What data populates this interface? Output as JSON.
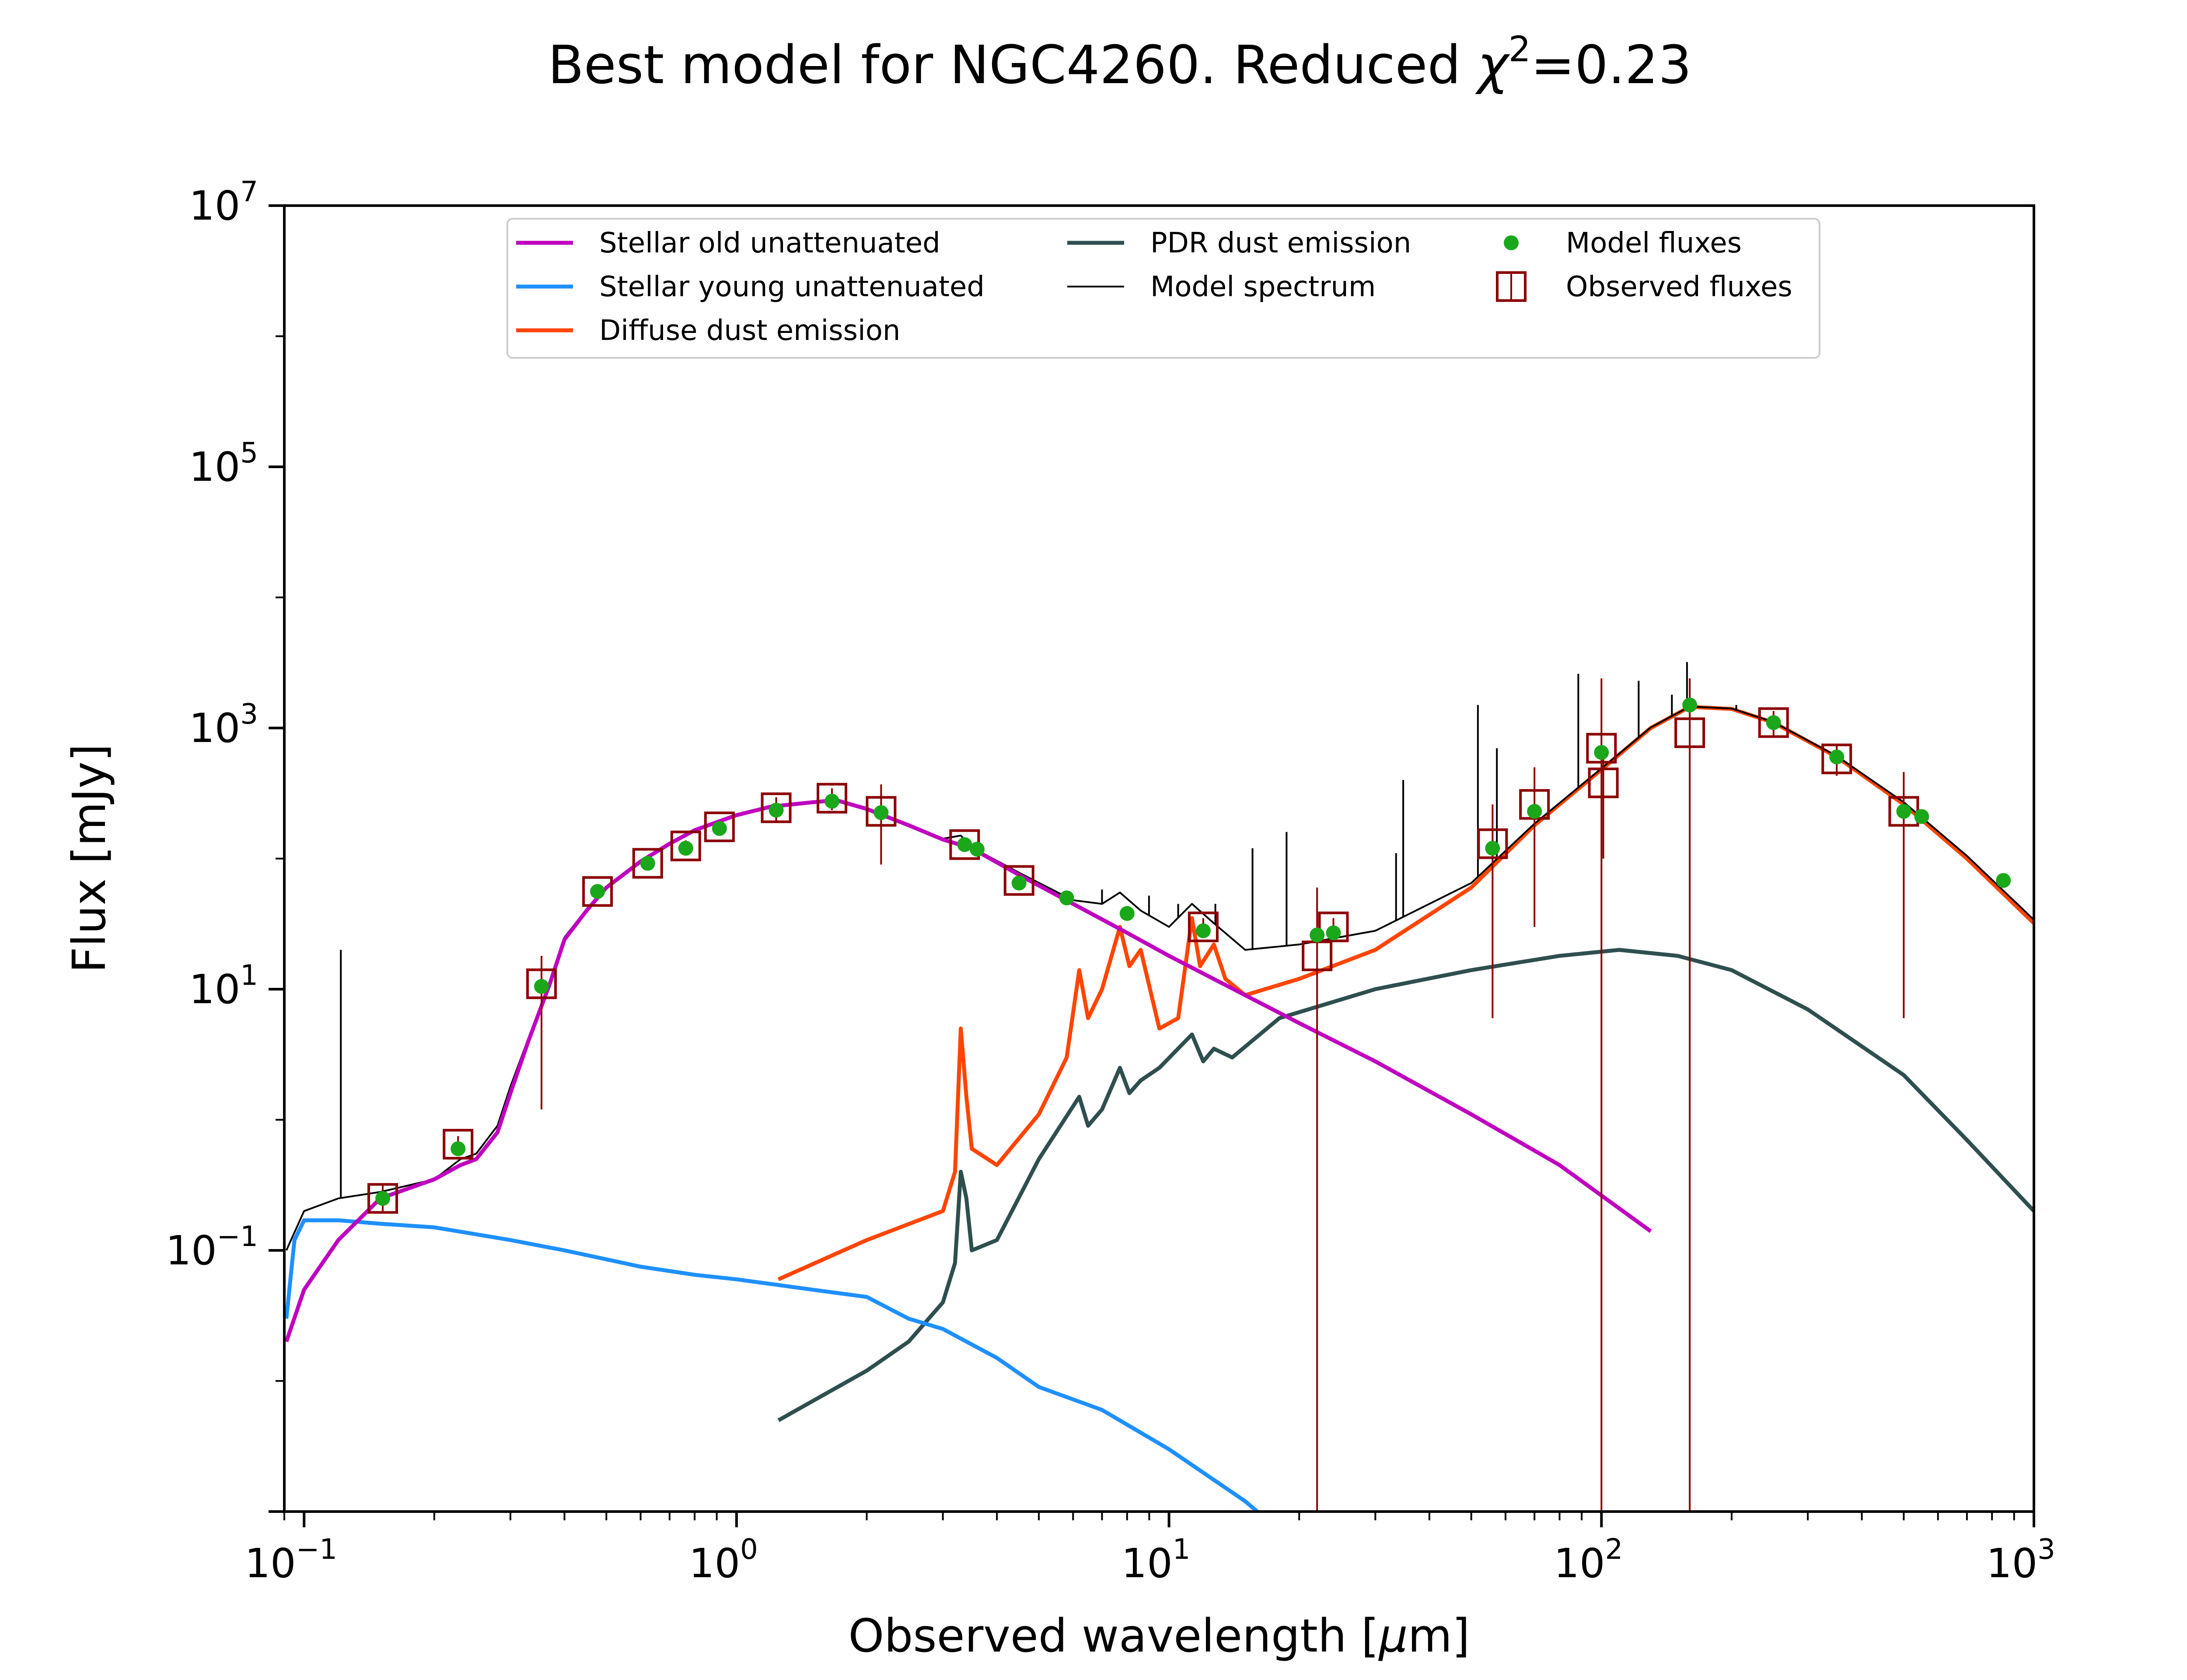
{
  "chart_data": {
    "type": "line",
    "title": "Best model for NGC4260. Reduced χ²=0.23",
    "title_parts": {
      "main": "Best model for NGC4260. Reduced ",
      "chi": "χ",
      "exp": "2",
      "eq": "=0.23"
    },
    "xlabel": "Observed wavelength [μm]",
    "xlabel_parts": {
      "pre": "Observed wavelength [",
      "mu": "μ",
      "post": "m]"
    },
    "ylabel": "Flux [mJy]",
    "xscale": "log",
    "yscale": "log",
    "xlim": [
      0.09,
      1000
    ],
    "ylim": [
      0.001,
      10000000
    ],
    "x_ticks": [
      {
        "value": 0.1,
        "base": "10",
        "exp": "−1"
      },
      {
        "value": 1,
        "base": "10",
        "exp": "0"
      },
      {
        "value": 10,
        "base": "10",
        "exp": "1"
      },
      {
        "value": 100,
        "base": "10",
        "exp": "2"
      },
      {
        "value": 1000,
        "base": "10",
        "exp": "3"
      }
    ],
    "y_ticks": [
      {
        "value": 0.1,
        "base": "10",
        "exp": "−1"
      },
      {
        "value": 10,
        "base": "10",
        "exp": "1"
      },
      {
        "value": 1000,
        "base": "10",
        "exp": "3"
      },
      {
        "value": 100000,
        "base": "10",
        "exp": "5"
      },
      {
        "value": 10000000,
        "base": "10",
        "exp": "7"
      }
    ],
    "legend_position": "upper center",
    "legend": [
      {
        "label": "Stellar old unattenuated",
        "kind": "line",
        "color": "#bf00bf"
      },
      {
        "label": "Stellar young unattenuated",
        "kind": "line",
        "color": "#1e90ff"
      },
      {
        "label": "Diffuse dust emission",
        "kind": "line",
        "color": "#ff4500"
      },
      {
        "label": "PDR dust emission",
        "kind": "line",
        "color": "#2f4f4f"
      },
      {
        "label": "Model spectrum",
        "kind": "line",
        "color": "#000000"
      },
      {
        "label": "Model fluxes",
        "kind": "dot",
        "color": "#1aa81a"
      },
      {
        "label": "Observed fluxes",
        "kind": "square",
        "color": "#8b0000"
      }
    ],
    "series": [
      {
        "name": "Stellar old unattenuated",
        "color": "#bf00bf",
        "points": [
          [
            0.091,
            0.02
          ],
          [
            0.1,
            0.05
          ],
          [
            0.12,
            0.12
          ],
          [
            0.15,
            0.25
          ],
          [
            0.2,
            0.35
          ],
          [
            0.23,
            0.45
          ],
          [
            0.25,
            0.5
          ],
          [
            0.28,
            0.8
          ],
          [
            0.3,
            1.6
          ],
          [
            0.33,
            4
          ],
          [
            0.37,
            11
          ],
          [
            0.4,
            24
          ],
          [
            0.45,
            40
          ],
          [
            0.5,
            60
          ],
          [
            0.6,
            95
          ],
          [
            0.7,
            130
          ],
          [
            0.8,
            165
          ],
          [
            0.9,
            190
          ],
          [
            1.0,
            215
          ],
          [
            1.2,
            250
          ],
          [
            1.5,
            270
          ],
          [
            1.7,
            280
          ],
          [
            2.0,
            240
          ],
          [
            2.5,
            180
          ],
          [
            3.0,
            140
          ],
          [
            3.5,
            120
          ],
          [
            4.5,
            75
          ],
          [
            6.0,
            45
          ],
          [
            8.0,
            27
          ],
          [
            10,
            18
          ],
          [
            15,
            9
          ],
          [
            20,
            5.5
          ],
          [
            30,
            2.8
          ],
          [
            50,
            1.1
          ],
          [
            80,
            0.45
          ],
          [
            130,
            0.14
          ]
        ]
      },
      {
        "name": "Stellar young unattenuated",
        "color": "#1e90ff",
        "points": [
          [
            0.091,
            0.03
          ],
          [
            0.095,
            0.12
          ],
          [
            0.1,
            0.17
          ],
          [
            0.12,
            0.17
          ],
          [
            0.15,
            0.16
          ],
          [
            0.2,
            0.15
          ],
          [
            0.3,
            0.12
          ],
          [
            0.4,
            0.1
          ],
          [
            0.6,
            0.075
          ],
          [
            0.8,
            0.065
          ],
          [
            1.0,
            0.06
          ],
          [
            1.5,
            0.05
          ],
          [
            2.0,
            0.044
          ],
          [
            2.5,
            0.03
          ],
          [
            3.0,
            0.025
          ],
          [
            4.0,
            0.015
          ],
          [
            5.0,
            0.009
          ],
          [
            7.0,
            0.006
          ],
          [
            10,
            0.003
          ],
          [
            15,
            0.0012
          ],
          [
            16,
            0.001
          ]
        ]
      },
      {
        "name": "Diffuse dust emission",
        "color": "#ff4500",
        "points": [
          [
            1.25,
            0.06
          ],
          [
            2.0,
            0.12
          ],
          [
            3.0,
            0.2
          ],
          [
            3.2,
            0.4
          ],
          [
            3.3,
            5
          ],
          [
            3.4,
            1.5
          ],
          [
            3.5,
            0.6
          ],
          [
            4.0,
            0.45
          ],
          [
            5.0,
            1.1
          ],
          [
            5.8,
            3
          ],
          [
            6.2,
            14
          ],
          [
            6.5,
            6
          ],
          [
            7.0,
            10
          ],
          [
            7.7,
            30
          ],
          [
            8.1,
            15
          ],
          [
            8.6,
            20
          ],
          [
            9.5,
            5
          ],
          [
            10.5,
            6
          ],
          [
            11.3,
            35
          ],
          [
            11.8,
            15
          ],
          [
            12.7,
            22
          ],
          [
            13.5,
            12
          ],
          [
            15,
            9
          ],
          [
            20,
            12
          ],
          [
            30,
            20
          ],
          [
            50,
            60
          ],
          [
            70,
            180
          ],
          [
            100,
            480
          ],
          [
            130,
            1000
          ],
          [
            160,
            1450
          ],
          [
            200,
            1400
          ],
          [
            250,
            1100
          ],
          [
            350,
            600
          ],
          [
            500,
            260
          ],
          [
            700,
            100
          ],
          [
            1000,
            32
          ]
        ]
      },
      {
        "name": "PDR dust emission",
        "color": "#2f4f4f",
        "points": [
          [
            1.25,
            0.005
          ],
          [
            2.0,
            0.012
          ],
          [
            2.5,
            0.02
          ],
          [
            3.0,
            0.04
          ],
          [
            3.2,
            0.08
          ],
          [
            3.3,
            0.4
          ],
          [
            3.4,
            0.25
          ],
          [
            3.5,
            0.1
          ],
          [
            4.0,
            0.12
          ],
          [
            5.0,
            0.5
          ],
          [
            6.2,
            1.5
          ],
          [
            6.5,
            0.9
          ],
          [
            7.0,
            1.2
          ],
          [
            7.7,
            2.5
          ],
          [
            8.1,
            1.6
          ],
          [
            8.6,
            2.0
          ],
          [
            9.5,
            2.5
          ],
          [
            11.3,
            4.5
          ],
          [
            12,
            2.8
          ],
          [
            12.7,
            3.5
          ],
          [
            14,
            3
          ],
          [
            18,
            6
          ],
          [
            30,
            10
          ],
          [
            50,
            14
          ],
          [
            80,
            18
          ],
          [
            110,
            20
          ],
          [
            150,
            18
          ],
          [
            200,
            14
          ],
          [
            300,
            7
          ],
          [
            500,
            2.2
          ],
          [
            700,
            0.7
          ],
          [
            1000,
            0.2
          ]
        ]
      },
      {
        "name": "Model spectrum",
        "color": "#000000",
        "points": [
          [
            0.091,
            0.1
          ],
          [
            0.1,
            0.2
          ],
          [
            0.12,
            0.25
          ],
          [
            0.15,
            0.28
          ],
          [
            0.2,
            0.35
          ],
          [
            0.23,
            0.5
          ],
          [
            0.25,
            0.55
          ],
          [
            0.28,
            0.9
          ],
          [
            0.3,
            1.8
          ],
          [
            0.33,
            4.2
          ],
          [
            0.37,
            11.5
          ],
          [
            0.4,
            25
          ],
          [
            0.45,
            41
          ],
          [
            0.5,
            61
          ],
          [
            0.6,
            96
          ],
          [
            0.7,
            131
          ],
          [
            0.8,
            166
          ],
          [
            0.9,
            191
          ],
          [
            1.0,
            216
          ],
          [
            1.2,
            252
          ],
          [
            1.5,
            272
          ],
          [
            1.7,
            282
          ],
          [
            2.0,
            242
          ],
          [
            2.5,
            182
          ],
          [
            3.0,
            142
          ],
          [
            3.3,
            150
          ],
          [
            3.5,
            122
          ],
          [
            4.5,
            78
          ],
          [
            6.0,
            48
          ],
          [
            7.0,
            45
          ],
          [
            7.7,
            55
          ],
          [
            8.6,
            40
          ],
          [
            10,
            30
          ],
          [
            11.3,
            45
          ],
          [
            12.7,
            32
          ],
          [
            15,
            20
          ],
          [
            20,
            22
          ],
          [
            30,
            28
          ],
          [
            50,
            65
          ],
          [
            70,
            185
          ],
          [
            100,
            490
          ],
          [
            130,
            1010
          ],
          [
            160,
            1460
          ],
          [
            200,
            1410
          ],
          [
            250,
            1110
          ],
          [
            350,
            610
          ],
          [
            500,
            270
          ],
          [
            700,
            105
          ],
          [
            1000,
            34
          ]
        ]
      }
    ],
    "emission_lines": [
      {
        "x": 0.1216,
        "y_top": 20
      },
      {
        "x": 7.0,
        "y_top": 58
      },
      {
        "x": 8.99,
        "y_top": 52
      },
      {
        "x": 10.5,
        "y_top": 45
      },
      {
        "x": 12.8,
        "y_top": 45
      },
      {
        "x": 15.6,
        "y_top": 120
      },
      {
        "x": 18.7,
        "y_top": 160
      },
      {
        "x": 33.5,
        "y_top": 110
      },
      {
        "x": 34.8,
        "y_top": 400
      },
      {
        "x": 51.8,
        "y_top": 1500
      },
      {
        "x": 57.3,
        "y_top": 700
      },
      {
        "x": 88.4,
        "y_top": 2600
      },
      {
        "x": 121.9,
        "y_top": 2300
      },
      {
        "x": 145.5,
        "y_top": 1800
      },
      {
        "x": 157.7,
        "y_top": 3200
      },
      {
        "x": 205,
        "y_top": 1500
      }
    ],
    "model_fluxes": [
      [
        0.152,
        0.25
      ],
      [
        0.227,
        0.6
      ],
      [
        0.354,
        10.5
      ],
      [
        0.477,
        56
      ],
      [
        0.623,
        92
      ],
      [
        0.763,
        120
      ],
      [
        0.913,
        170
      ],
      [
        1.235,
        235
      ],
      [
        1.662,
        275
      ],
      [
        2.159,
        225
      ],
      [
        3.368,
        128
      ],
      [
        3.6,
        118
      ],
      [
        4.5,
        65
      ],
      [
        5.8,
        50
      ],
      [
        8.0,
        38
      ],
      [
        12,
        28
      ],
      [
        22,
        26
      ],
      [
        24,
        27
      ],
      [
        56,
        120
      ],
      [
        70,
        230
      ],
      [
        100,
        650
      ],
      [
        160,
        1500
      ],
      [
        250,
        1100
      ],
      [
        350,
        600
      ],
      [
        500,
        230
      ],
      [
        550,
        210
      ],
      [
        850,
        68
      ]
    ],
    "observed_fluxes": [
      {
        "x": 0.152,
        "y": 0.25,
        "lo": 0.2,
        "hi": 0.32
      },
      {
        "x": 0.227,
        "y": 0.65,
        "lo": 0.55,
        "hi": 0.75
      },
      {
        "x": 0.354,
        "y": 11,
        "lo": 1.2,
        "hi": 18
      },
      {
        "x": 0.477,
        "y": 56,
        "lo": 50,
        "hi": 63
      },
      {
        "x": 0.623,
        "y": 92,
        "lo": 83,
        "hi": 102
      },
      {
        "x": 0.763,
        "y": 125,
        "lo": 112,
        "hi": 138
      },
      {
        "x": 0.913,
        "y": 175,
        "lo": 158,
        "hi": 192
      },
      {
        "x": 1.235,
        "y": 245,
        "lo": 195,
        "hi": 295
      },
      {
        "x": 1.662,
        "y": 290,
        "lo": 235,
        "hi": 345
      },
      {
        "x": 2.159,
        "y": 230,
        "lo": 90,
        "hi": 370
      },
      {
        "x": 3.368,
        "y": 128,
        "lo": 115,
        "hi": 141
      },
      {
        "x": 4.5,
        "y": 68,
        "lo": 60,
        "hi": 76
      },
      {
        "x": 12,
        "y": 30,
        "lo": 25,
        "hi": 35
      },
      {
        "x": 22,
        "y": 18,
        "lo": 0.001,
        "hi": 60
      },
      {
        "x": 24,
        "y": 30,
        "lo": 25,
        "hi": 35
      },
      {
        "x": 56,
        "y": 130,
        "lo": 6,
        "hi": 260
      },
      {
        "x": 70,
        "y": 260,
        "lo": 30,
        "hi": 500
      },
      {
        "x": 100,
        "y": 700,
        "lo": 0.001,
        "hi": 2400
      },
      {
        "x": 101,
        "y": 380,
        "lo": 100,
        "hi": 660
      },
      {
        "x": 160,
        "y": 920,
        "lo": 0.001,
        "hi": 2400
      },
      {
        "x": 250,
        "y": 1100,
        "lo": 850,
        "hi": 1350
      },
      {
        "x": 350,
        "y": 580,
        "lo": 430,
        "hi": 730
      },
      {
        "x": 500,
        "y": 230,
        "lo": 6,
        "hi": 460
      }
    ]
  }
}
